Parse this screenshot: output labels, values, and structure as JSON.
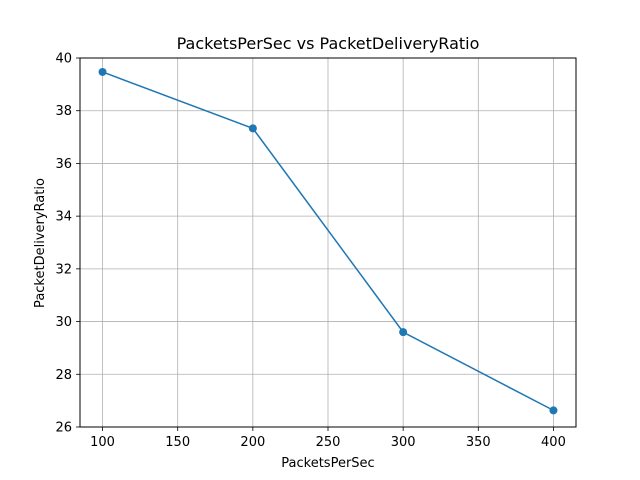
{
  "chart_data": {
    "type": "line",
    "title": "PacketsPerSec vs PacketDeliveryRatio",
    "xlabel": "PacketsPerSec",
    "ylabel": "PacketDeliveryRatio",
    "x": [
      100,
      200,
      300,
      400
    ],
    "series": [
      {
        "values": [
          39.47,
          37.33,
          29.6,
          26.63
        ],
        "color": "#1f77b4"
      }
    ],
    "xlim": [
      85,
      415
    ],
    "ylim": [
      26,
      40
    ],
    "xticks": [
      100,
      150,
      200,
      250,
      300,
      350,
      400
    ],
    "yticks": [
      26,
      28,
      30,
      32,
      34,
      36,
      38,
      40
    ],
    "grid": true,
    "markers": "circle",
    "legend": "none"
  }
}
